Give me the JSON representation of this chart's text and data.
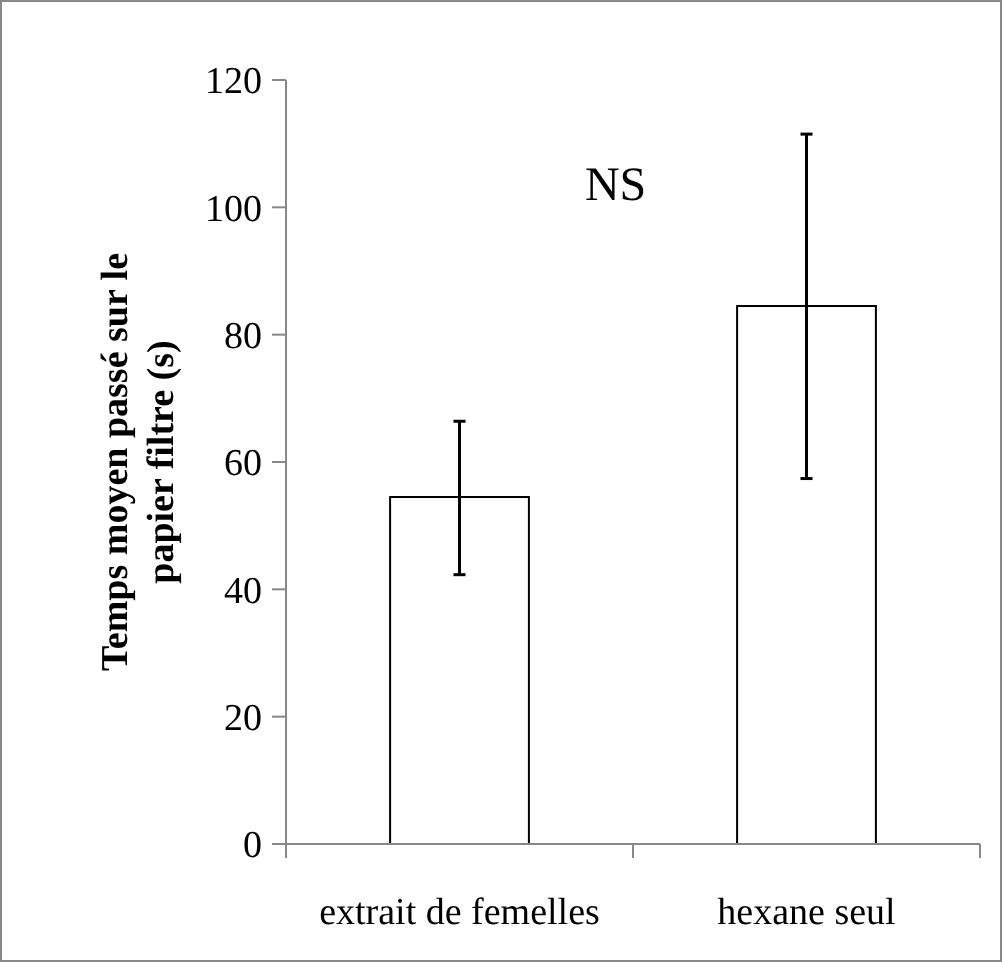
{
  "chart_data": {
    "type": "bar",
    "categories": [
      "extrait de femelles",
      "hexane seul"
    ],
    "values": [
      54.5,
      84.5
    ],
    "errors": [
      [
        42.3,
        66.4
      ],
      [
        57.4,
        111.5
      ]
    ],
    "color": "#ffffff",
    "ylabel": "Temps moyen passé sur le papier filtre (s)",
    "ylim": [
      0,
      120
    ],
    "yticks": [
      0,
      20,
      40,
      60,
      80,
      100,
      120
    ],
    "grid": false,
    "annotations": [
      "NS"
    ]
  }
}
